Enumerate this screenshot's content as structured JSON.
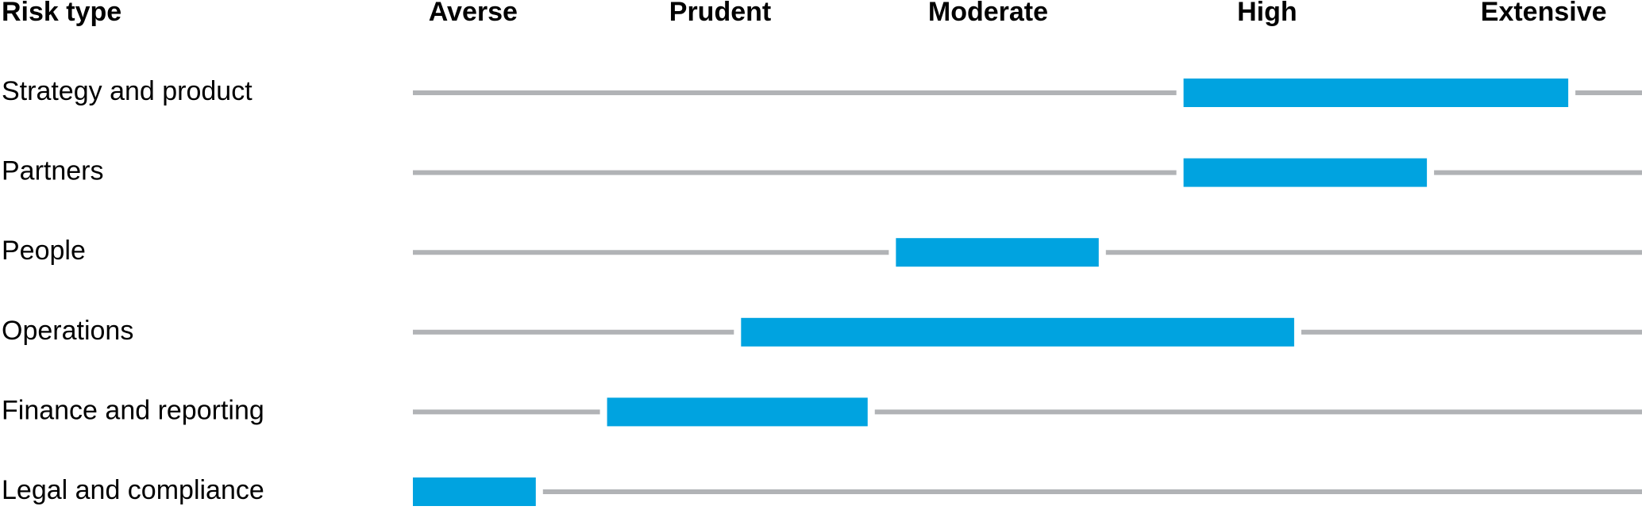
{
  "chart_data": {
    "type": "range-bar",
    "y_label": "Risk type",
    "categories": [
      "Strategy and product",
      "Partners",
      "People",
      "Operations",
      "Finance and reporting",
      "Legal and compliance"
    ],
    "starts": [
      62.7,
      62.7,
      39.3,
      26.7,
      15.8,
      0
    ],
    "ends": [
      94.0,
      82.5,
      55.8,
      71.7,
      37.0,
      10.0
    ],
    "xlim": [
      0,
      100
    ],
    "xticks": [
      {
        "value": 4.9,
        "label": "Averse"
      },
      {
        "value": 25,
        "label": "Prudent"
      },
      {
        "value": 46.8,
        "label": "Moderate"
      },
      {
        "value": 69.5,
        "label": "High"
      },
      {
        "value": 92,
        "label": "Extensive"
      }
    ],
    "color": "#00a3e0",
    "track_color": "#b1b3b6"
  }
}
